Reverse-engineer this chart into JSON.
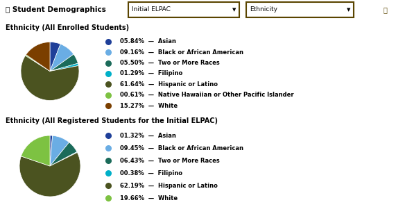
{
  "header_bg": "#D4A017",
  "header_text": "Student Demographics",
  "dropdown1": "Initial ELPAC",
  "dropdown2": "Ethnicity",
  "bg_color": "#FFFFFF",
  "section1_title": "Ethnicity (All Enrolled Students)",
  "section2_title": "Ethnicity (All Registered Students for the Initial ELPAC)",
  "pie1": {
    "values": [
      5.84,
      9.16,
      5.5,
      1.29,
      61.64,
      0.61,
      15.27
    ],
    "labels": [
      "Asian",
      "Black or African American",
      "Two or More Races",
      "Filipino",
      "Hispanic or Latino",
      "Native Hawaiian or Other Pacific Islander",
      "White"
    ],
    "percents": [
      "05.84%",
      "09.16%",
      "05.50%",
      "01.29%",
      "61.64%",
      "00.61%",
      "15.27%"
    ],
    "colors": [
      "#1F3F99",
      "#6AADE4",
      "#1B6B5A",
      "#00B0C8",
      "#4B5320",
      "#7DC242",
      "#7B3F00"
    ]
  },
  "pie2": {
    "values": [
      1.32,
      9.45,
      6.43,
      0.38,
      62.19,
      19.66
    ],
    "labels": [
      "Asian",
      "Black or African American",
      "Two or More Races",
      "Filipino",
      "Hispanic or Latino",
      "White"
    ],
    "percents": [
      "01.32%",
      "09.45%",
      "06.43%",
      "00.38%",
      "62.19%",
      "19.66%"
    ],
    "colors": [
      "#1F3F99",
      "#6AADE4",
      "#1B6B5A",
      "#00B0C8",
      "#4B5320",
      "#7DC242"
    ]
  }
}
